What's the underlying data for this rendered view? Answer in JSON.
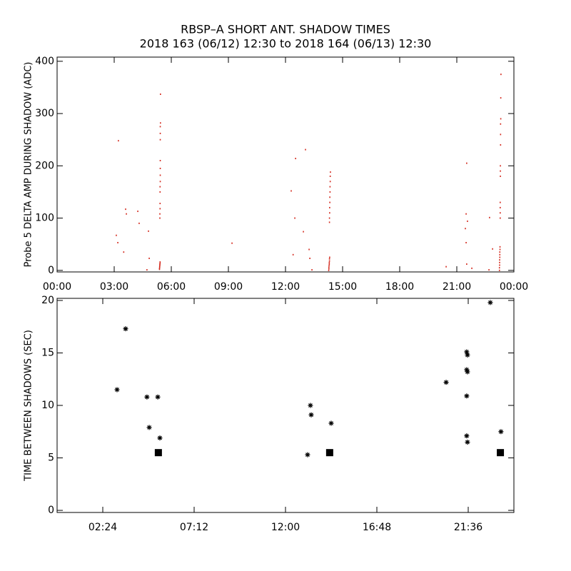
{
  "chart_data": [
    {
      "type": "scatter",
      "title": "RBSP–A SHORT ANT. SHADOW TIMES",
      "subtitle": "2018 163 (06/12) 12:30 to 2018 164 (06/13) 12:30",
      "ylabel": "Probe 5 DELTA AMP DURING SHADOW (ADC)",
      "xlim": [
        0,
        24
      ],
      "ylim": [
        -3,
        408
      ],
      "xticks": [
        {
          "value": 0,
          "label": "00:00"
        },
        {
          "value": 3,
          "label": "03:00"
        },
        {
          "value": 6,
          "label": "06:00"
        },
        {
          "value": 9,
          "label": "09:00"
        },
        {
          "value": 12,
          "label": "12:00"
        },
        {
          "value": 15,
          "label": "15:00"
        },
        {
          "value": 18,
          "label": "18:00"
        },
        {
          "value": 21,
          "label": "21:00"
        },
        {
          "value": 24,
          "label": "00:00"
        }
      ],
      "yticks": [
        0,
        100,
        200,
        300,
        400
      ],
      "series": [
        {
          "color": "#d42a1e",
          "marker": "dot",
          "x": [
            3.22,
            3.11,
            3.19,
            3.6,
            3.64,
            3.5,
            4.24,
            4.31,
            4.8,
            4.84,
            4.72,
            9.19,
            12.3,
            12.53,
            12.49,
            12.4,
            13.05,
            12.94,
            13.24,
            13.28,
            13.39,
            20.44,
            21.52,
            21.49,
            21.56,
            21.45,
            21.49,
            21.52,
            21.79,
            22.72,
            22.88,
            22.69,
            5.38,
            5.38,
            5.39,
            5.39,
            5.4,
            5.4,
            5.41,
            5.41,
            5.4,
            5.4,
            5.41,
            5.41,
            5.41,
            5.41,
            5.42,
            5.42,
            5.42,
            5.42,
            5.42,
            5.42,
            5.42,
            5.43,
            5.43,
            14.27,
            14.28,
            14.28,
            14.29,
            14.3,
            14.3,
            14.31,
            14.31,
            14.32,
            14.31,
            14.31,
            14.32,
            14.32,
            14.33,
            14.33,
            14.34,
            14.34,
            14.35,
            14.35,
            14.36,
            23.24,
            23.24,
            23.25,
            23.25,
            23.25,
            23.26,
            23.26,
            23.26,
            23.27,
            23.27,
            23.28,
            23.28,
            23.28,
            23.28,
            23.29,
            23.29,
            23.29,
            23.3,
            23.3,
            23.3,
            23.31,
            23.31,
            23.32
          ],
          "values": [
            248,
            67,
            53,
            117,
            108,
            35,
            113,
            90,
            75,
            23,
            1,
            52,
            152,
            214,
            100,
            30,
            231,
            74,
            40,
            23,
            1,
            7,
            205,
            108,
            94,
            80,
            53,
            12,
            4,
            101,
            41,
            1,
            2,
            4,
            6,
            8,
            10,
            12,
            14,
            16,
            100,
            108,
            118,
            128,
            150,
            160,
            170,
            182,
            195,
            210,
            250,
            262,
            275,
            282,
            337,
            0,
            3,
            6,
            9,
            12,
            15,
            18,
            22,
            25,
            92,
            100,
            110,
            120,
            130,
            140,
            150,
            160,
            170,
            180,
            188,
            0,
            5,
            10,
            15,
            20,
            25,
            30,
            35,
            40,
            45,
            100,
            110,
            120,
            130,
            180,
            190,
            200,
            240,
            260,
            280,
            290,
            330,
            375
          ]
        }
      ]
    },
    {
      "type": "scatter",
      "ylabel": "TIME BETWEEN SHADOWS (SEC)",
      "xlim": [
        0,
        24
      ],
      "ylim": [
        -0.2,
        20.2
      ],
      "xticks": [
        {
          "value": 2.4,
          "label": "02:24"
        },
        {
          "value": 7.2,
          "label": "07:12"
        },
        {
          "value": 12,
          "label": "12:00"
        },
        {
          "value": 16.8,
          "label": "16:48"
        },
        {
          "value": 21.6,
          "label": "21:36"
        }
      ],
      "yticks": [
        0,
        5,
        10,
        15,
        20
      ],
      "series": [
        {
          "color": "#000000",
          "marker": "asterisk",
          "x": [
            3.15,
            3.6,
            4.72,
            5.29,
            4.84,
            5.4,
            13.16,
            13.31,
            13.35,
            14.4,
            20.44,
            21.52,
            21.56,
            21.52,
            21.56,
            21.52,
            21.52,
            21.56,
            22.76,
            23.32
          ],
          "values": [
            11.5,
            17.3,
            10.8,
            10.8,
            7.9,
            6.9,
            5.3,
            10.0,
            9.1,
            8.3,
            12.2,
            15.1,
            14.8,
            13.4,
            13.2,
            10.9,
            7.1,
            6.5,
            19.8,
            7.5
          ]
        },
        {
          "color": "#000000",
          "marker": "square",
          "x": [
            5.32,
            14.32,
            23.29
          ],
          "values": [
            5.5,
            5.5,
            5.5
          ]
        }
      ]
    }
  ]
}
